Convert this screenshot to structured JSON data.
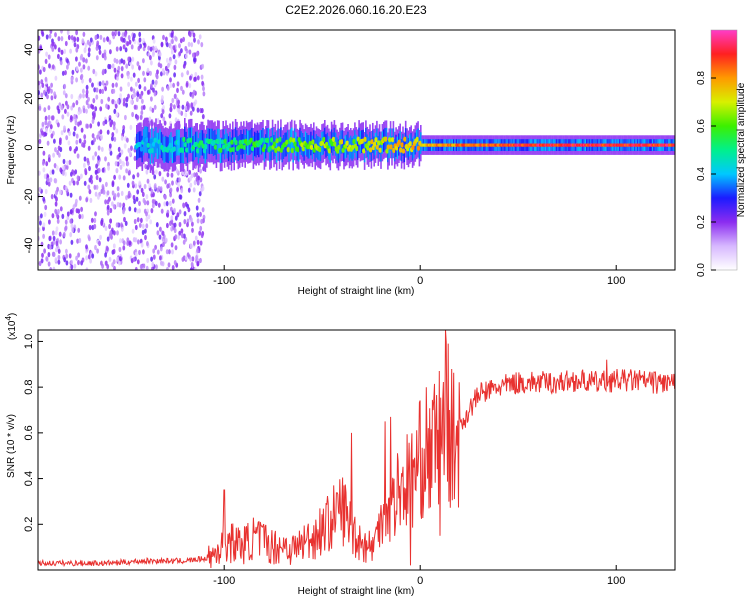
{
  "chart_data": [
    {
      "type": "heatmap",
      "title": "C2E2.2026.060.16.20.E23",
      "xlabel": "Height of straight line (km)",
      "ylabel": "Frequency (Hz)",
      "xlim": [
        -195,
        130
      ],
      "ylim": [
        -50,
        48
      ],
      "xticks": [
        -100,
        0,
        100
      ],
      "xtick_labels": [
        "-100",
        "0",
        "100"
      ],
      "yticks": [
        -40,
        -20,
        0,
        20,
        40
      ],
      "ytick_labels": [
        "-40",
        "-20",
        "0",
        "20",
        "40"
      ],
      "colorbar": {
        "label": "Normalized spectral amplitude",
        "range": [
          0,
          1
        ],
        "ticks": [
          0,
          0.2,
          0.4,
          0.6,
          0.8
        ],
        "tick_labels": [
          "0.0",
          "0.2",
          "0.4",
          "0.6",
          "0.8"
        ]
      },
      "features": [
        {
          "name": "broadband noise",
          "x_range": [
            -195,
            -110
          ],
          "freq_range": [
            -50,
            48
          ],
          "amplitude": 0.15
        },
        {
          "name": "signal band",
          "x_range": [
            -145,
            130
          ],
          "center_freq": 1,
          "amplitude_start": 0.4,
          "amplitude_end": 0.9
        }
      ]
    },
    {
      "type": "line",
      "xlabel": "Height of straight line (km)",
      "ylabel": "SNR (10 * v/v)",
      "y_multiplier_label": "(x10",
      "y_multiplier_exp": "4",
      "y_multiplier_close": ")",
      "xlim": [
        -195,
        130
      ],
      "ylim": [
        0,
        1.05
      ],
      "xticks": [
        -100,
        0,
        100
      ],
      "xtick_labels": [
        "-100",
        "0",
        "100"
      ],
      "yticks": [
        0.2,
        0.4,
        0.6,
        0.8,
        1.0
      ],
      "ytick_labels": [
        "0.2",
        "0.4",
        "0.6",
        "0.8",
        "1.0"
      ],
      "color": "#e8312f",
      "series": [
        {
          "name": "SNR",
          "x": [
            -195,
            -180,
            -160,
            -140,
            -120,
            -110,
            -105,
            -100,
            -95,
            -90,
            -85,
            -80,
            -75,
            -70,
            -65,
            -60,
            -55,
            -50,
            -45,
            -40,
            -35,
            -30,
            -25,
            -22,
            -20,
            -18,
            -15,
            -12,
            -10,
            -8,
            -5,
            -3,
            0,
            3,
            5,
            8,
            10,
            12,
            13,
            15,
            18,
            20,
            25,
            30,
            40,
            50,
            60,
            70,
            80,
            90,
            100,
            110,
            120,
            130
          ],
          "y": [
            0.03,
            0.03,
            0.03,
            0.04,
            0.04,
            0.05,
            0.07,
            0.12,
            0.12,
            0.11,
            0.14,
            0.13,
            0.1,
            0.11,
            0.09,
            0.12,
            0.14,
            0.18,
            0.22,
            0.28,
            0.18,
            0.12,
            0.1,
            0.14,
            0.28,
            0.3,
            0.26,
            0.34,
            0.36,
            0.38,
            0.4,
            0.42,
            0.48,
            0.52,
            0.5,
            0.55,
            0.58,
            0.63,
            0.78,
            0.58,
            0.55,
            0.62,
            0.7,
            0.77,
            0.8,
            0.82,
            0.82,
            0.82,
            0.83,
            0.82,
            0.83,
            0.83,
            0.82,
            0.82
          ]
        }
      ],
      "spikes": [
        {
          "x": -100,
          "y": 0.35
        },
        {
          "x": -35,
          "y": 0.6
        },
        {
          "x": -18,
          "y": 0.65
        },
        {
          "x": -15,
          "y": 0.67
        },
        {
          "x": -5,
          "y": 0.02
        },
        {
          "x": 10,
          "y": 0.15
        },
        {
          "x": 13,
          "y": 1.05
        },
        {
          "x": 15,
          "y": 0.7
        },
        {
          "x": 95,
          "y": 0.92
        }
      ]
    }
  ]
}
